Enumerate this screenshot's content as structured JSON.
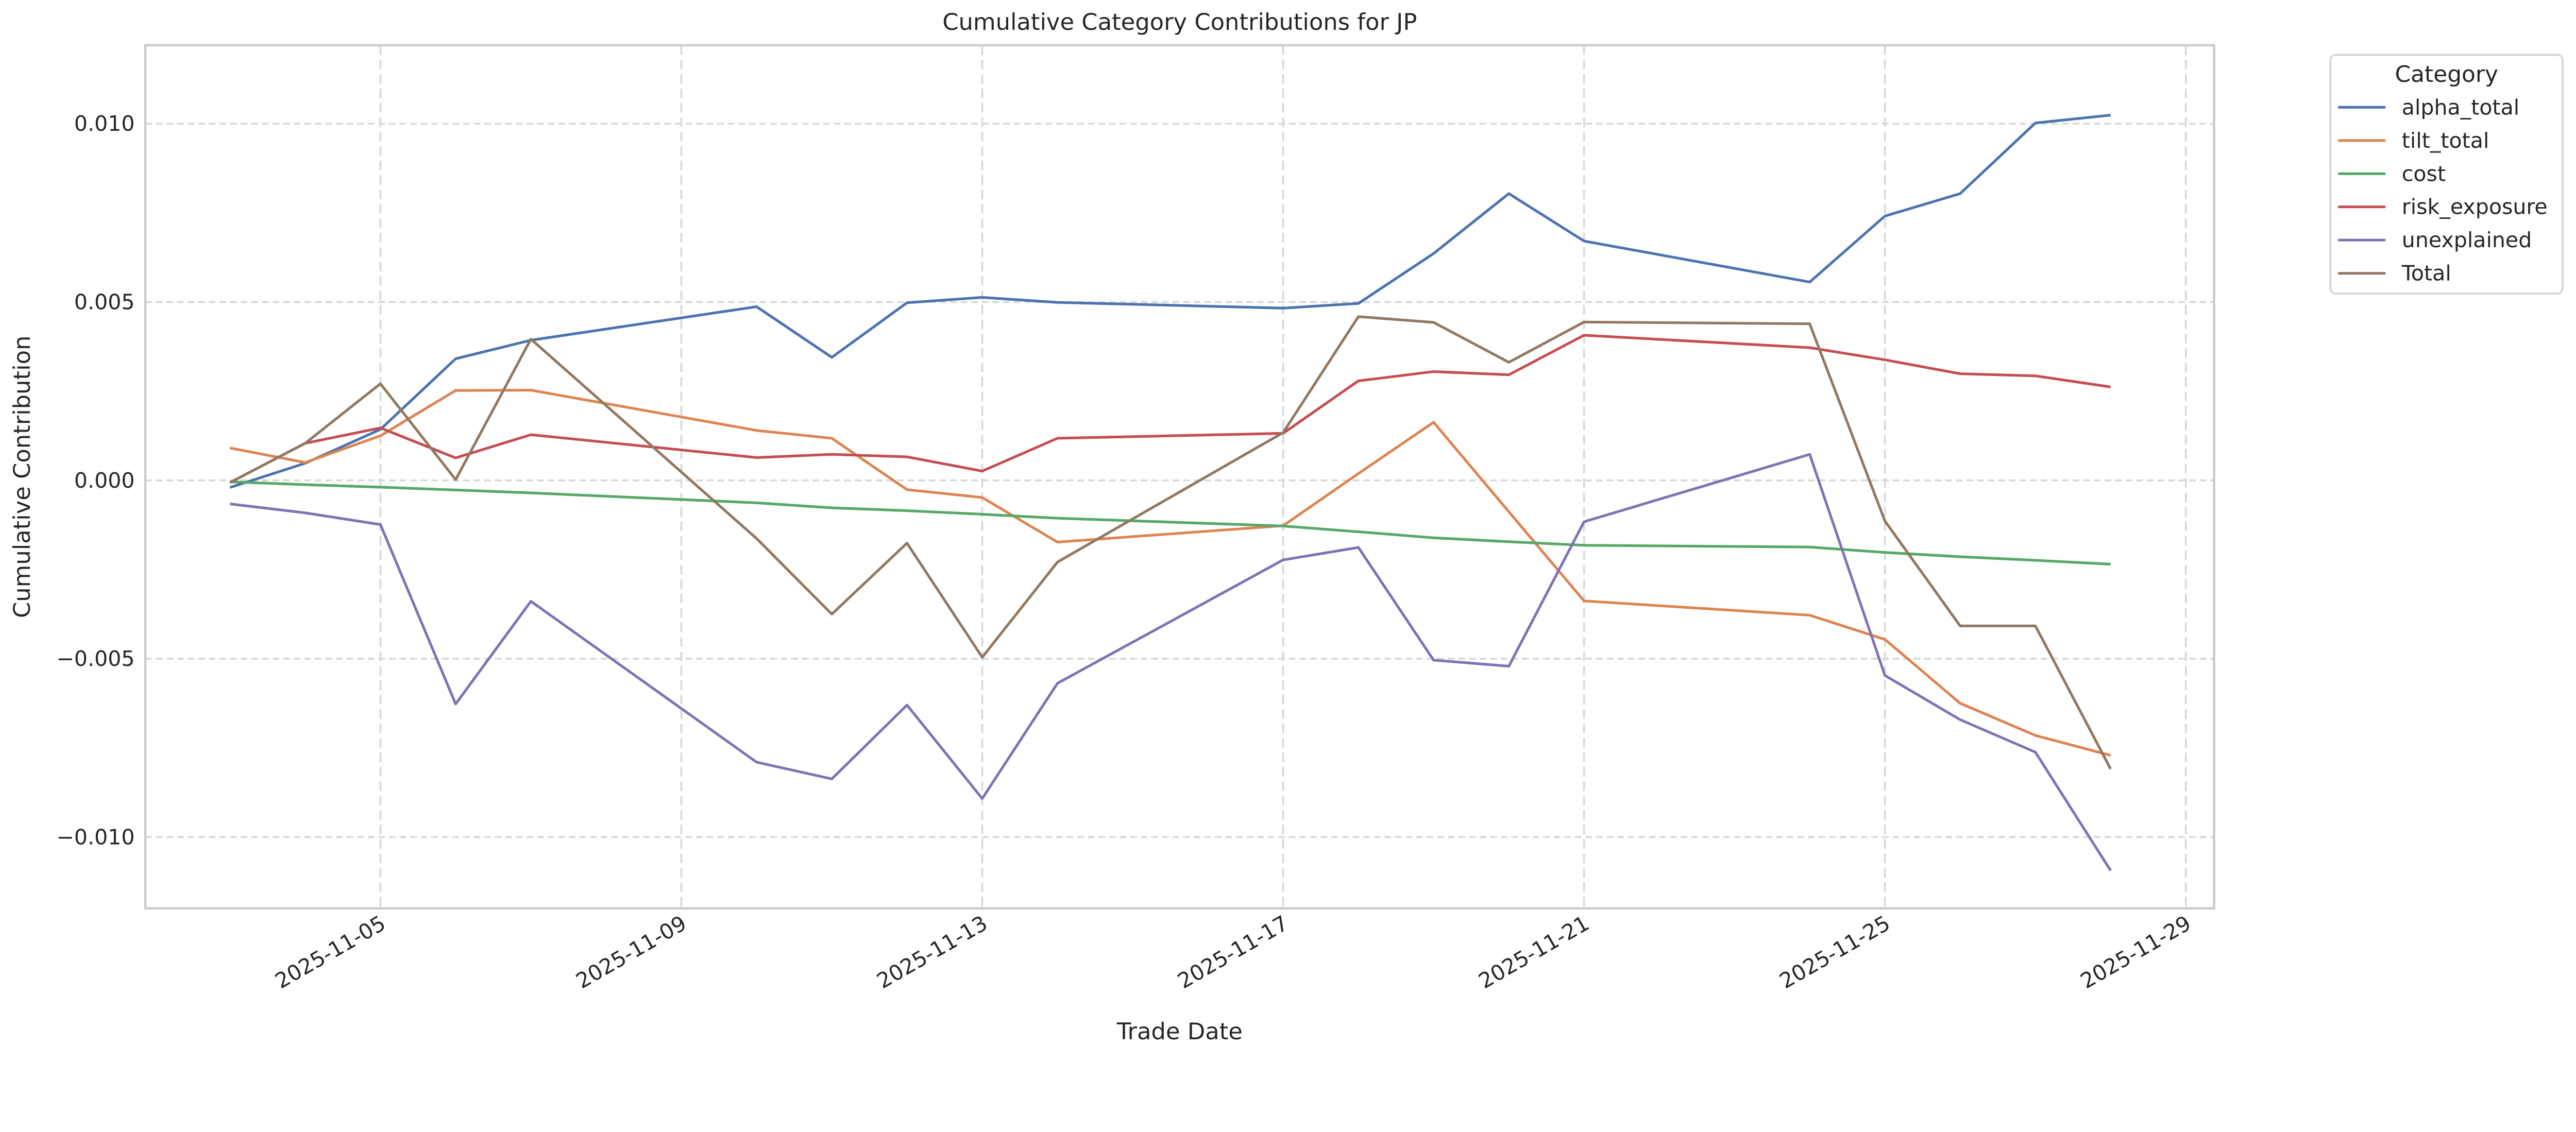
{
  "chart_data": {
    "type": "line",
    "title": "Cumulative Category Contributions for JP",
    "xlabel": "Trade Date",
    "ylabel": "Cumulative Contribution",
    "x": [
      "2025-11-03",
      "2025-11-04",
      "2025-11-05",
      "2025-11-06",
      "2025-11-07",
      "2025-11-10",
      "2025-11-11",
      "2025-11-12",
      "2025-11-13",
      "2025-11-14",
      "2025-11-17",
      "2025-11-18",
      "2025-11-19",
      "2025-11-20",
      "2025-11-21",
      "2025-11-24",
      "2025-11-25",
      "2025-11-26",
      "2025-11-27",
      "2025-11-28"
    ],
    "xlim": [
      "2025-11-01T21:00",
      "2025-11-29T09:00"
    ],
    "ylim": [
      -0.012,
      0.0122
    ],
    "x_ticks": [
      "2025-11-05",
      "2025-11-09",
      "2025-11-13",
      "2025-11-17",
      "2025-11-21",
      "2025-11-25",
      "2025-11-29"
    ],
    "y_ticks": [
      0.01,
      0.005,
      0.0,
      -0.005,
      -0.01
    ],
    "y_tick_labels": [
      "0.010",
      "0.005",
      "0.000",
      "−0.005",
      "−0.010"
    ],
    "grid": true,
    "legend": {
      "title": "Category",
      "placement": "outside-top-right"
    },
    "series": [
      {
        "name": "alpha_total",
        "color": "#4c72b0",
        "values": [
          -0.0002,
          0.00048,
          0.00143,
          0.00341,
          0.00393,
          0.00487,
          0.00345,
          0.00498,
          0.00513,
          0.00499,
          0.00483,
          0.00496,
          0.00636,
          0.00804,
          0.00671,
          0.00556,
          0.00741,
          0.00804,
          0.01002,
          0.01024
        ]
      },
      {
        "name": "tilt_total",
        "color": "#dd8452",
        "values": [
          0.00091,
          0.0005,
          0.00125,
          0.00252,
          0.00253,
          0.0014,
          0.00118,
          -0.00026,
          -0.00048,
          -0.00173,
          -0.00127,
          0.00019,
          0.00163,
          -0.00088,
          -0.00338,
          -0.00378,
          -0.00446,
          -0.00625,
          -0.00715,
          -0.00771
        ]
      },
      {
        "name": "cost",
        "color": "#55a868",
        "values": [
          -4e-05,
          -0.00012,
          -0.00019,
          -0.00027,
          -0.00035,
          -0.00063,
          -0.00077,
          -0.00085,
          -0.00095,
          -0.00106,
          -0.00128,
          -0.00144,
          -0.00161,
          -0.00172,
          -0.00182,
          -0.00187,
          -0.00202,
          -0.00214,
          -0.00224,
          -0.00235
        ]
      },
      {
        "name": "risk_exposure",
        "color": "#c44e52",
        "values": [
          -6e-05,
          0.00104,
          0.00147,
          0.00063,
          0.00128,
          0.00064,
          0.00073,
          0.00066,
          0.00026,
          0.00118,
          0.00132,
          0.00279,
          0.00305,
          0.00296,
          0.00407,
          0.00372,
          0.00338,
          0.00299,
          0.00293,
          0.00262
        ]
      },
      {
        "name": "unexplained",
        "color": "#8172b3",
        "values": [
          -0.00066,
          -0.00091,
          -0.00124,
          -0.00627,
          -0.00339,
          -0.0079,
          -0.00837,
          -0.0063,
          -0.00892,
          -0.00569,
          -0.00223,
          -0.00188,
          -0.00504,
          -0.00521,
          -0.00116,
          0.00073,
          -0.00547,
          -0.00671,
          -0.00762,
          -0.01094
        ]
      },
      {
        "name": "Total",
        "color": "#937860",
        "values": [
          -6e-05,
          0.00104,
          0.00271,
          2e-05,
          0.00396,
          -0.00163,
          -0.00375,
          -0.00176,
          -0.00496,
          -0.00229,
          0.00134,
          0.00459,
          0.00443,
          0.00331,
          0.00444,
          0.00439,
          -0.00114,
          -0.00408,
          -0.00408,
          -0.00809
        ]
      }
    ]
  }
}
